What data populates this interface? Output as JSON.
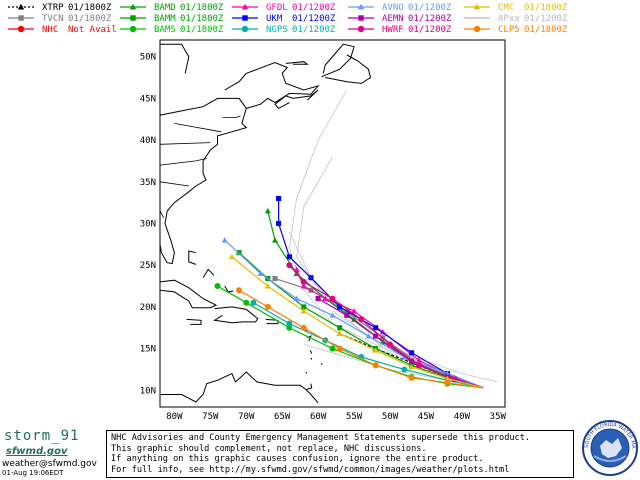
{
  "legend": [
    {
      "model": "XTRP",
      "time": "01/1800Z",
      "color": "#000000",
      "marker": "triangle",
      "dash": true
    },
    {
      "model": "TVCN",
      "time": "01/1800Z",
      "color": "#808080",
      "marker": "square",
      "dash": false
    },
    {
      "model": "NHC",
      "time": "Not Avail",
      "color": "#ff0000",
      "marker": "circle",
      "dash": false
    },
    {
      "model": "BAMD",
      "time": "01/1800Z",
      "color": "#00a000",
      "marker": "triangle",
      "dash": false
    },
    {
      "model": "BAMM",
      "time": "01/1800Z",
      "color": "#00a000",
      "marker": "square",
      "dash": false
    },
    {
      "model": "BAMS",
      "time": "01/1800Z",
      "color": "#00c000",
      "marker": "circle",
      "dash": false
    },
    {
      "model": "GFDL",
      "time": "01/1200Z",
      "color": "#ff00aa",
      "marker": "triangle",
      "dash": false
    },
    {
      "model": "UKM",
      "time": "01/1200Z",
      "color": "#0000ff",
      "marker": "square",
      "dash": false
    },
    {
      "model": "NGPS",
      "time": "01/1200Z",
      "color": "#00b0b0",
      "marker": "circle",
      "dash": false
    },
    {
      "model": "AVNO",
      "time": "01/1200Z",
      "color": "#6699ff",
      "marker": "triangle",
      "dash": false
    },
    {
      "model": "AEMN",
      "time": "01/1200Z",
      "color": "#aa00aa",
      "marker": "square",
      "dash": false
    },
    {
      "model": "HWRF",
      "time": "01/1200Z",
      "color": "#e00080",
      "marker": "circle",
      "dash": false
    },
    {
      "model": "CMC",
      "time": "01/1800Z",
      "color": "#e0c000",
      "marker": "triangle",
      "dash": false
    },
    {
      "model": "APxx",
      "time": "01/1200Z",
      "color": "#bbbbbb",
      "marker": "none",
      "dash": false
    },
    {
      "model": "CLP5",
      "time": "01/1800Z",
      "color": "#ff8000",
      "marker": "circle",
      "dash": false
    }
  ],
  "map": {
    "lat_labels": [
      "50N",
      "45N",
      "40N",
      "35N",
      "30N",
      "25N",
      "20N",
      "15N",
      "10N"
    ],
    "lon_labels": [
      "80W",
      "75W",
      "70W",
      "65W",
      "60W",
      "55W",
      "50W",
      "45W",
      "40W",
      "35W"
    ],
    "lat_range": [
      8,
      52
    ],
    "lon_range": [
      -82,
      -34
    ],
    "start_point": [
      -37,
      10.3
    ],
    "tracks": [
      {
        "model": "TVCN",
        "points": [
          [
            -37,
            10.3
          ],
          [
            -41,
            11.4
          ],
          [
            -46,
            13.2
          ],
          [
            -51,
            16.3
          ],
          [
            -56,
            19.4
          ],
          [
            -61,
            22.0
          ],
          [
            -66,
            23.4
          ]
        ]
      },
      {
        "model": "XTRP",
        "points": [
          [
            -37,
            10.3
          ],
          [
            -42,
            11.6
          ],
          [
            -47,
            13.3
          ],
          [
            -52,
            15.0
          ],
          [
            -57,
            16.8
          ]
        ]
      },
      {
        "model": "BAMD",
        "points": [
          [
            -37,
            10.3
          ],
          [
            -42,
            11.7
          ],
          [
            -47,
            13.4
          ],
          [
            -51,
            15.8
          ],
          [
            -55,
            18.5
          ],
          [
            -59,
            21.0
          ],
          [
            -63,
            24.0
          ],
          [
            -66,
            28.0
          ],
          [
            -67,
            31.5
          ]
        ]
      },
      {
        "model": "BAMM",
        "points": [
          [
            -37,
            10.3
          ],
          [
            -42,
            11.5
          ],
          [
            -47,
            13.0
          ],
          [
            -52,
            15.0
          ],
          [
            -57,
            17.5
          ],
          [
            -62,
            20.0
          ],
          [
            -67,
            23.4
          ],
          [
            -71,
            26.5
          ]
        ]
      },
      {
        "model": "BAMS",
        "points": [
          [
            -37,
            10.3
          ],
          [
            -42,
            10.8
          ],
          [
            -47,
            11.6
          ],
          [
            -52,
            13.0
          ],
          [
            -58,
            15.0
          ],
          [
            -64,
            17.5
          ],
          [
            -70,
            20.5
          ],
          [
            -74,
            22.5
          ]
        ]
      },
      {
        "model": "GFDL",
        "points": [
          [
            -37,
            10.3
          ],
          [
            -41,
            11.5
          ],
          [
            -46,
            13.6
          ],
          [
            -51,
            17.0
          ],
          [
            -55,
            19.5
          ],
          [
            -59,
            21.0
          ],
          [
            -62,
            22.5
          ],
          [
            -63,
            24.5
          ]
        ]
      },
      {
        "model": "UKM",
        "points": [
          [
            -37,
            10.3
          ],
          [
            -42,
            12.0
          ],
          [
            -47,
            14.5
          ],
          [
            -52,
            17.5
          ],
          [
            -57,
            20.0
          ],
          [
            -61,
            23.5
          ],
          [
            -64,
            26.0
          ],
          [
            -65.5,
            30.0
          ],
          [
            -65.5,
            33.0
          ]
        ]
      },
      {
        "model": "NGPS",
        "points": [
          [
            -37,
            10.3
          ],
          [
            -42,
            11.2
          ],
          [
            -48,
            12.5
          ],
          [
            -54,
            14.0
          ],
          [
            -59,
            16.0
          ],
          [
            -64,
            18.0
          ],
          [
            -69,
            20.5
          ]
        ]
      },
      {
        "model": "AVNO",
        "points": [
          [
            -37,
            10.3
          ],
          [
            -42,
            12.0
          ],
          [
            -48,
            14.0
          ],
          [
            -53,
            16.5
          ],
          [
            -58,
            19.0
          ],
          [
            -63,
            21.0
          ],
          [
            -68,
            24.0
          ],
          [
            -73,
            28.0
          ]
        ]
      },
      {
        "model": "AEMN",
        "points": [
          [
            -37,
            10.3
          ],
          [
            -42,
            11.6
          ],
          [
            -47,
            13.5
          ],
          [
            -52,
            16.5
          ],
          [
            -56,
            19.0
          ],
          [
            -60,
            21.0
          ]
        ]
      },
      {
        "model": "HWRF",
        "points": [
          [
            -37,
            10.3
          ],
          [
            -41,
            11.3
          ],
          [
            -46,
            13.0
          ],
          [
            -50,
            15.5
          ],
          [
            -54,
            18.5
          ],
          [
            -58,
            21.0
          ],
          [
            -62,
            23.0
          ],
          [
            -64,
            25.0
          ]
        ]
      },
      {
        "model": "CMC",
        "points": [
          [
            -37,
            10.3
          ],
          [
            -42,
            11.4
          ],
          [
            -47,
            12.8
          ],
          [
            -52,
            14.8
          ],
          [
            -57,
            16.8
          ],
          [
            -62,
            19.5
          ],
          [
            -67,
            22.5
          ],
          [
            -72,
            26.0
          ]
        ]
      },
      {
        "model": "CLP5",
        "points": [
          [
            -37,
            10.3
          ],
          [
            -42,
            10.9
          ],
          [
            -47,
            11.5
          ],
          [
            -52,
            13.0
          ],
          [
            -57,
            15.0
          ],
          [
            -62,
            17.5
          ],
          [
            -67,
            20.0
          ],
          [
            -71,
            22.0
          ]
        ]
      }
    ]
  },
  "footer": {
    "storm_name": "storm_91",
    "agency_logo": "sfwmd.gov",
    "contact": "weather@sfwmd.gov",
    "timestamp": "01-Aug 19:06EDT",
    "notice_lines": [
      "NHC Advisories and County Emergency Management Statements supersede this product.",
      "This graphic should complement, not replace, NHC discussions.",
      "If anything on this graphic causes confusion, ignore the entire product.",
      "For full info, see  http://my.sfwmd.gov/sfwmd/common/images/weather/plots.html"
    ],
    "seal_text": "SOUTH FLORIDA WATER MANAGEMENT DISTRICT"
  }
}
